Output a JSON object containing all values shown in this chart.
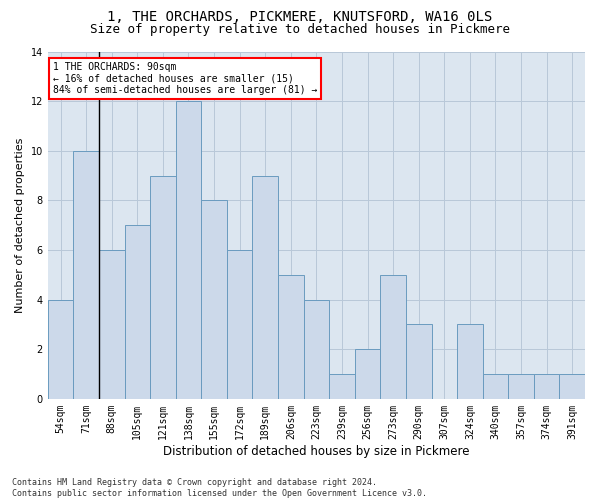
{
  "title": "1, THE ORCHARDS, PICKMERE, KNUTSFORD, WA16 0LS",
  "subtitle": "Size of property relative to detached houses in Pickmere",
  "xlabel": "Distribution of detached houses by size in Pickmere",
  "ylabel": "Number of detached properties",
  "bar_labels": [
    "54sqm",
    "71sqm",
    "88sqm",
    "105sqm",
    "121sqm",
    "138sqm",
    "155sqm",
    "172sqm",
    "189sqm",
    "206sqm",
    "223sqm",
    "239sqm",
    "256sqm",
    "273sqm",
    "290sqm",
    "307sqm",
    "324sqm",
    "340sqm",
    "357sqm",
    "374sqm",
    "391sqm"
  ],
  "bar_values": [
    4,
    10,
    6,
    7,
    9,
    12,
    8,
    6,
    9,
    5,
    4,
    1,
    2,
    5,
    3,
    0,
    3,
    1,
    1,
    1,
    1
  ],
  "bar_color": "#ccd9ea",
  "bar_edge_color": "#6a9bbf",
  "grid_color": "#b8c8d8",
  "background_color": "#dce6f0",
  "annotation_text": "1 THE ORCHARDS: 90sqm\n← 16% of detached houses are smaller (15)\n84% of semi-detached houses are larger (81) →",
  "annotation_box_color": "white",
  "annotation_box_edge": "red",
  "footnote": "Contains HM Land Registry data © Crown copyright and database right 2024.\nContains public sector information licensed under the Open Government Licence v3.0.",
  "ylim": [
    0,
    14
  ],
  "title_fontsize": 10,
  "subtitle_fontsize": 9,
  "ylabel_fontsize": 8,
  "xlabel_fontsize": 8.5,
  "tick_fontsize": 7,
  "annot_fontsize": 7,
  "footnote_fontsize": 6
}
